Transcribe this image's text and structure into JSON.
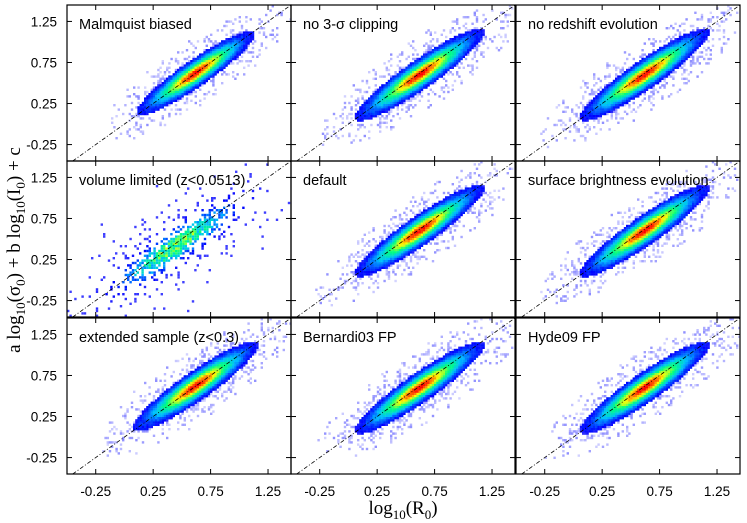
{
  "figure": {
    "xlabel": "log10(R0)",
    "ylabel": "a log10(σ0) + b log10(I0) + c"
  },
  "chart_data": {
    "type": "heatmap",
    "grid": "3x3 panels, shared axes",
    "xlim": [
      -0.5,
      1.45
    ],
    "ylim": [
      -0.45,
      1.45
    ],
    "x_ticks": [
      -0.25,
      0.25,
      0.75,
      1.25
    ],
    "y_ticks": [
      -0.25,
      0.25,
      0.75,
      1.25
    ],
    "x_tick_labels": [
      "-0.25",
      "0.25",
      "0.75",
      "1.25"
    ],
    "y_tick_labels": [
      "-0.25",
      "0.25",
      "0.75",
      "1.25"
    ],
    "reference_line": "one-to-one (y = x), dash-dot",
    "colormap": [
      "#ffffff",
      "#0000ff",
      "#00bfff",
      "#00ff80",
      "#ffff00",
      "#ff0000"
    ],
    "panels": [
      {
        "title": "Malmquist biased",
        "center": [
          0.62,
          0.62
        ],
        "spread_major": 0.3,
        "spread_minor": 0.06,
        "density": "smooth"
      },
      {
        "title": "no 3-σ clipping",
        "center": [
          0.62,
          0.6
        ],
        "spread_major": 0.33,
        "spread_minor": 0.065,
        "density": "smooth"
      },
      {
        "title": "no redshift evolution",
        "center": [
          0.62,
          0.6
        ],
        "spread_major": 0.33,
        "spread_minor": 0.065,
        "density": "smooth"
      },
      {
        "title": "volume limited (z<0.0513)",
        "center": [
          0.45,
          0.42
        ],
        "spread_major": 0.38,
        "spread_minor": 0.08,
        "density": "sparse"
      },
      {
        "title": "default",
        "center": [
          0.62,
          0.6
        ],
        "spread_major": 0.33,
        "spread_minor": 0.065,
        "density": "smooth"
      },
      {
        "title": "surface brightness evolution",
        "center": [
          0.62,
          0.6
        ],
        "spread_major": 0.33,
        "spread_minor": 0.065,
        "density": "smooth"
      },
      {
        "title": "extended sample (z<0.3)",
        "center": [
          0.62,
          0.62
        ],
        "spread_major": 0.32,
        "spread_minor": 0.065,
        "density": "smooth"
      },
      {
        "title": "Bernardi03 FP",
        "center": [
          0.62,
          0.6
        ],
        "spread_major": 0.33,
        "spread_minor": 0.065,
        "density": "smooth"
      },
      {
        "title": "Hyde09 FP",
        "center": [
          0.62,
          0.6
        ],
        "spread_major": 0.33,
        "spread_minor": 0.065,
        "density": "smooth"
      }
    ]
  }
}
